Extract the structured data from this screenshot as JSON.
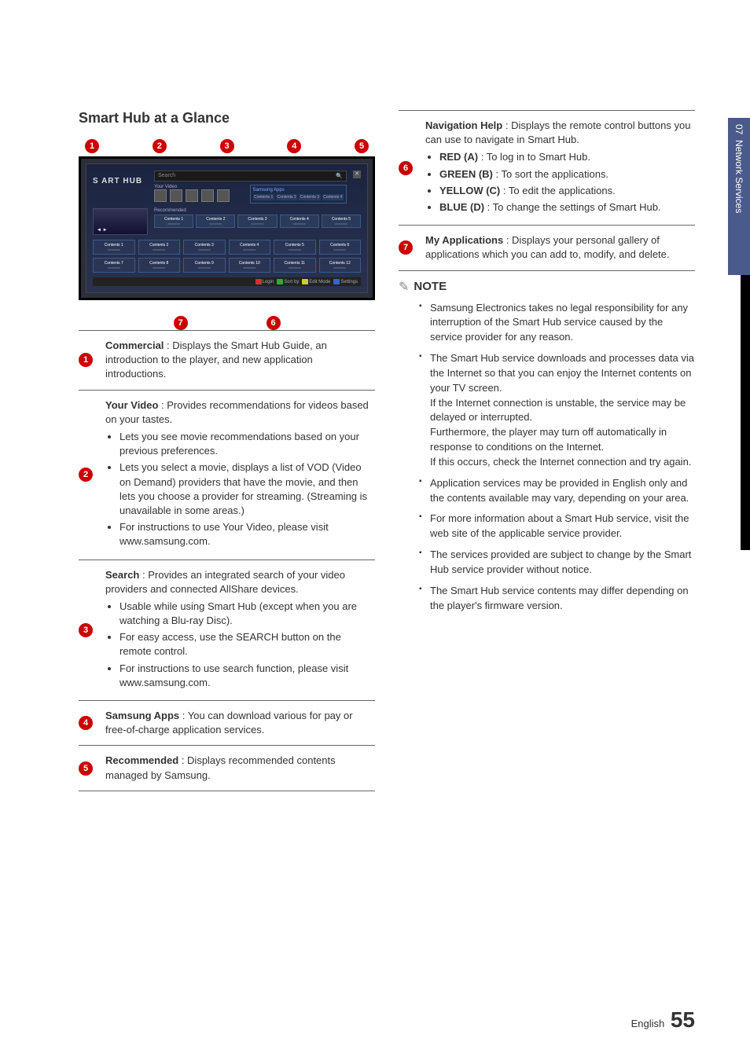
{
  "side_tab": {
    "chapter": "07",
    "title": "Network Services"
  },
  "section_title": "Smart Hub at a Glance",
  "diagram": {
    "logo": "S   ART HUB",
    "search_label": "Search",
    "your_video_label": "Your Video",
    "samsung_apps_label": "Samsung Apps",
    "apps_cells": [
      "Contents 1",
      "Contents 2",
      "Contents 3",
      "Contents 4"
    ],
    "recommended_label": "Recommended",
    "rec_cells": [
      {
        "t": "Contents 1",
        "s": "xxxxxxxx"
      },
      {
        "t": "Contents 2",
        "s": "xxxxxxxx"
      },
      {
        "t": "Contents 3",
        "s": "xxxxxxxx"
      },
      {
        "t": "Contents 4",
        "s": "xxxxxxxx"
      },
      {
        "t": "Contents 5",
        "s": "xxxxxxxx"
      }
    ],
    "grid": [
      {
        "t": "Contents 1",
        "s": "xxxxxxxx"
      },
      {
        "t": "Contents 2",
        "s": "xxxxxxxx"
      },
      {
        "t": "Contents 3",
        "s": "xxxxxxxx"
      },
      {
        "t": "Contents 4",
        "s": "xxxxxxxx"
      },
      {
        "t": "Contents 5",
        "s": "xxxxxxxx"
      },
      {
        "t": "Contents 6",
        "s": "xxxxxxxx"
      },
      {
        "t": "Contents 7",
        "s": "xxxxxxxx"
      },
      {
        "t": "Contents 8",
        "s": "xxxxxxxx"
      },
      {
        "t": "Contents 9",
        "s": "xxxxxxxx"
      },
      {
        "t": "Contents 10",
        "s": "xxxxxxxx"
      },
      {
        "t": "Contents 11",
        "s": "xxxxxxxx"
      },
      {
        "t": "Contents 12",
        "s": "xxxxxxxx"
      }
    ],
    "nav": {
      "a": "Login",
      "b": "Sort by",
      "c": "Edit Mode",
      "d": "Settings"
    }
  },
  "callouts": {
    "top": [
      "1",
      "2",
      "3",
      "4",
      "5"
    ],
    "bottom": [
      "7",
      "6"
    ]
  },
  "left_rows": [
    {
      "n": "1",
      "title": "Commercial",
      "text": " : Displays the Smart Hub Guide, an introduction to the player, and new application introductions."
    },
    {
      "n": "2",
      "title": "Your Video",
      "text": " : Provides recommendations for videos based on your tastes.",
      "bullets": [
        "Lets you see movie recommendations based on your previous preferences.",
        "Lets you select a movie, displays a list of VOD (Video on Demand) providers that have the movie, and then lets you choose a provider for streaming. (Streaming is unavailable in some areas.)",
        "For instructions to use Your Video, please visit www.samsung.com."
      ]
    },
    {
      "n": "3",
      "title": "Search",
      "text": " : Provides an integrated search of your video providers and connected AllShare devices.",
      "bullets": [
        "Usable while using Smart Hub (except when you are watching a Blu-ray Disc).",
        "For easy access, use the SEARCH button on the remote control.",
        "For instructions to use search function, please visit www.samsung.com."
      ]
    },
    {
      "n": "4",
      "title": "Samsung Apps",
      "text": " : You can download various for pay or free-of-charge application services."
    },
    {
      "n": "5",
      "title": "Recommended",
      "text": " : Displays recommended contents managed by Samsung."
    }
  ],
  "right_rows": [
    {
      "n": "6",
      "title": "Navigation Help",
      "text": " : Displays the remote control buttons you can use to navigate in Smart Hub.",
      "bullets": [
        {
          "b": "RED (A)",
          "t": " : To log in to Smart Hub."
        },
        {
          "b": "GREEN (B)",
          "t": " : To sort the applications."
        },
        {
          "b": "YELLOW (C)",
          "t": " : To edit the applications."
        },
        {
          "b": "BLUE (D)",
          "t": " : To change the settings of Smart Hub."
        }
      ]
    },
    {
      "n": "7",
      "title": "My Applications",
      "text": " : Displays your personal gallery of applications which you can add to, modify, and delete."
    }
  ],
  "note_label": "NOTE",
  "notes": [
    "Samsung Electronics takes no legal responsibility for any interruption of the Smart Hub service caused by the service provider for any reason.",
    "The Smart Hub service downloads and processes data via the Internet so that you can enjoy the Internet contents on your TV screen.\nIf the Internet connection is unstable, the service may be delayed or interrupted.\nFurthermore, the player may turn off automatically in response to conditions on the Internet.\nIf this occurs, check the Internet connection and try again.",
    "Application services may be provided in English only and the contents available may vary, depending on your area.",
    "For more information about a Smart Hub service, visit the web site of the applicable service provider.",
    "The services provided are subject to change by the Smart Hub service provider without notice.",
    "The Smart Hub service contents may differ depending on the player's firmware version."
  ],
  "footer": {
    "lang": "English",
    "page": "55"
  }
}
